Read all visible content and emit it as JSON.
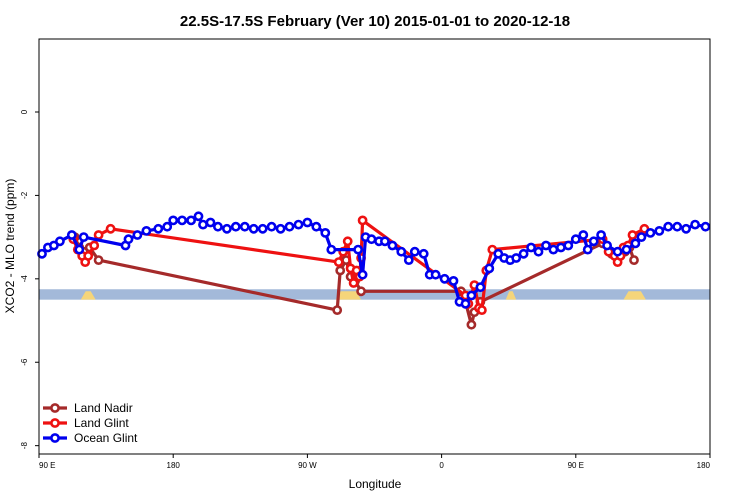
{
  "chart_data": {
    "type": "line",
    "title": "22.5S-17.5S February (Ver 10)   2015-01-01 to 2020-12-18",
    "xlabel": "Longitude",
    "ylabel": "XCO2 - MLO trend (ppm)",
    "xlim": [
      90,
      540
    ],
    "ylim": [
      -8.2,
      1.75
    ],
    "x_ticks": [
      {
        "value": 90,
        "label": "90 E"
      },
      {
        "value": 180,
        "label": "180"
      },
      {
        "value": 270,
        "label": "90 W"
      },
      {
        "value": 360,
        "label": "0"
      },
      {
        "value": 450,
        "label": "90 E"
      },
      {
        "value": 540,
        "label": "180"
      }
    ],
    "y_ticks": [
      {
        "value": 0,
        "label": "0"
      },
      {
        "value": -2,
        "label": "-2"
      },
      {
        "value": -4,
        "label": "-4"
      },
      {
        "value": -6,
        "label": "-6"
      },
      {
        "value": -8,
        "label": "-8"
      }
    ],
    "legend_position": "bottom-left",
    "surface_strip": {
      "y_range": [
        -4.5,
        -4.25
      ],
      "ocean_color": "#a3b9d9",
      "land_color": "#f5d57a",
      "land_segments": [
        [
          118,
          128
        ],
        [
          289,
          306
        ],
        [
          373,
          384
        ],
        [
          403,
          410
        ],
        [
          482,
          497
        ]
      ]
    },
    "series": [
      {
        "name": "Land Nadir",
        "color": "#a52a2a",
        "points": [
          [
            114,
            -3.0
          ],
          [
            117,
            -3.25
          ],
          [
            120,
            -3.35
          ],
          [
            124,
            -3.25
          ],
          [
            130,
            -3.55
          ],
          [
            290,
            -4.75
          ],
          [
            292,
            -3.8
          ],
          [
            296,
            -3.55
          ],
          [
            299,
            -3.95
          ],
          [
            302,
            -4.05
          ],
          [
            306,
            -4.3
          ],
          [
            373,
            -4.3
          ],
          [
            376,
            -4.55
          ],
          [
            380,
            -5.1
          ],
          [
            382,
            -4.8
          ],
          [
            386,
            -4.55
          ],
          [
            468,
            -3.15
          ],
          [
            474,
            -3.4
          ],
          [
            483,
            -3.35
          ],
          [
            486,
            -3.25
          ],
          [
            489,
            -3.55
          ]
        ]
      },
      {
        "name": "Land Glint",
        "color": "#ee1111",
        "points": [
          [
            113,
            -3.05
          ],
          [
            116,
            -3.3
          ],
          [
            119,
            -3.45
          ],
          [
            121,
            -3.6
          ],
          [
            123,
            -3.45
          ],
          [
            127,
            -3.2
          ],
          [
            130,
            -2.95
          ],
          [
            138,
            -2.8
          ],
          [
            291,
            -3.6
          ],
          [
            294,
            -3.35
          ],
          [
            297,
            -3.1
          ],
          [
            299,
            -3.75
          ],
          [
            301,
            -4.1
          ],
          [
            303,
            -3.8
          ],
          [
            305,
            -3.95
          ],
          [
            306,
            -3.5
          ],
          [
            307,
            -2.6
          ],
          [
            376,
            -4.4
          ],
          [
            378,
            -4.6
          ],
          [
            382,
            -4.15
          ],
          [
            385,
            -4.7
          ],
          [
            387,
            -4.75
          ],
          [
            390,
            -3.8
          ],
          [
            394,
            -3.3
          ],
          [
            468,
            -3.05
          ],
          [
            472,
            -3.35
          ],
          [
            476,
            -3.45
          ],
          [
            478,
            -3.6
          ],
          [
            480,
            -3.45
          ],
          [
            482,
            -3.25
          ],
          [
            485,
            -3.2
          ],
          [
            488,
            -2.95
          ],
          [
            496,
            -2.8
          ]
        ]
      },
      {
        "name": "Ocean Glint",
        "color": "#0000ee",
        "points": [
          [
            92,
            -3.4
          ],
          [
            96,
            -3.25
          ],
          [
            100,
            -3.2
          ],
          [
            104,
            -3.1
          ],
          [
            112,
            -2.95
          ],
          [
            117,
            -3.3
          ],
          [
            120,
            -3.0
          ],
          [
            148,
            -3.2
          ],
          [
            150,
            -3.05
          ],
          [
            156,
            -2.95
          ],
          [
            162,
            -2.85
          ],
          [
            170,
            -2.8
          ],
          [
            176,
            -2.75
          ],
          [
            180,
            -2.6
          ],
          [
            186,
            -2.6
          ],
          [
            192,
            -2.6
          ],
          [
            197,
            -2.5
          ],
          [
            200,
            -2.7
          ],
          [
            205,
            -2.65
          ],
          [
            210,
            -2.75
          ],
          [
            216,
            -2.8
          ],
          [
            222,
            -2.75
          ],
          [
            228,
            -2.75
          ],
          [
            234,
            -2.8
          ],
          [
            240,
            -2.8
          ],
          [
            246,
            -2.75
          ],
          [
            252,
            -2.8
          ],
          [
            258,
            -2.75
          ],
          [
            264,
            -2.7
          ],
          [
            270,
            -2.65
          ],
          [
            276,
            -2.75
          ],
          [
            282,
            -2.9
          ],
          [
            286,
            -3.3
          ],
          [
            304,
            -3.3
          ],
          [
            307,
            -3.9
          ],
          [
            309,
            -3.0
          ],
          [
            313,
            -3.05
          ],
          [
            318,
            -3.1
          ],
          [
            322,
            -3.1
          ],
          [
            327,
            -3.2
          ],
          [
            333,
            -3.35
          ],
          [
            338,
            -3.55
          ],
          [
            342,
            -3.35
          ],
          [
            348,
            -3.4
          ],
          [
            352,
            -3.9
          ],
          [
            356,
            -3.9
          ],
          [
            362,
            -4.0
          ],
          [
            368,
            -4.05
          ],
          [
            372,
            -4.55
          ],
          [
            376,
            -4.6
          ],
          [
            380,
            -4.4
          ],
          [
            386,
            -4.2
          ],
          [
            392,
            -3.75
          ],
          [
            398,
            -3.4
          ],
          [
            402,
            -3.5
          ],
          [
            406,
            -3.55
          ],
          [
            410,
            -3.5
          ],
          [
            415,
            -3.4
          ],
          [
            420,
            -3.25
          ],
          [
            425,
            -3.35
          ],
          [
            430,
            -3.2
          ],
          [
            435,
            -3.3
          ],
          [
            440,
            -3.25
          ],
          [
            445,
            -3.2
          ],
          [
            450,
            -3.05
          ],
          [
            455,
            -2.95
          ],
          [
            458,
            -3.3
          ],
          [
            462,
            -3.1
          ],
          [
            467,
            -2.95
          ],
          [
            471,
            -3.2
          ],
          [
            478,
            -3.35
          ],
          [
            484,
            -3.3
          ],
          [
            490,
            -3.15
          ],
          [
            494,
            -3.0
          ],
          [
            500,
            -2.9
          ],
          [
            506,
            -2.85
          ],
          [
            512,
            -2.75
          ],
          [
            518,
            -2.75
          ],
          [
            524,
            -2.8
          ],
          [
            530,
            -2.7
          ],
          [
            537,
            -2.75
          ]
        ]
      }
    ]
  }
}
